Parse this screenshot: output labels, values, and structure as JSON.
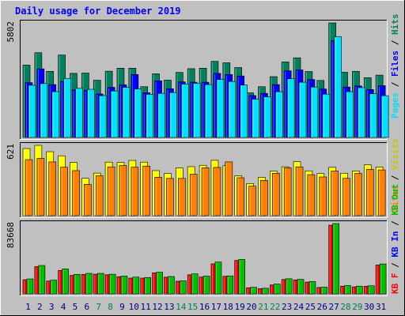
{
  "chart_data": {
    "type": "bar",
    "title": "Daily usage for December 2019",
    "x": [
      1,
      2,
      3,
      4,
      5,
      6,
      7,
      8,
      9,
      10,
      11,
      12,
      13,
      14,
      15,
      16,
      17,
      18,
      19,
      20,
      21,
      22,
      23,
      24,
      25,
      26,
      27,
      28,
      29,
      30,
      31
    ],
    "weekend_days": [
      7,
      8,
      14,
      15,
      21,
      22,
      28,
      29
    ],
    "panels": [
      {
        "id": "hits",
        "ymax": 5802,
        "ymax_label": "5802",
        "series": [
          {
            "name": "Hits",
            "color": "#00805c",
            "values": [
              3665,
              4293,
              3350,
              4176,
              3247,
              3262,
              2899,
              3357,
              3509,
              3509,
              2571,
              3225,
              2904,
              3296,
              3485,
              3509,
              3857,
              3782,
              3541,
              2262,
              2571,
              3080,
              3825,
              4034,
              3340,
              2890,
              5802,
              3302,
              3350,
              3029,
              3157
            ]
          },
          {
            "name": "Files",
            "color": "#0000ff",
            "values": [
              2776,
              3474,
              2678,
              2836,
              2413,
              2389,
              2204,
              2541,
              2665,
              3190,
              2266,
              2870,
              2467,
              2815,
              2798,
              2798,
              3247,
              3190,
              3115,
              2123,
              2234,
              2678,
              3376,
              3420,
              2934,
              2453,
              4915,
              2555,
              2610,
              2428,
              2624
            ]
          },
          {
            "name": "Pages",
            "color": "#00e0ff",
            "values": [
              2643,
              2730,
              2320,
              2992,
              2489,
              2440,
              2118,
              2356,
              2541,
              2455,
              2188,
              2234,
              2277,
              2709,
              2745,
              2678,
              2934,
              2836,
              2655,
              1941,
              2059,
              2320,
              2974,
              2798,
              2555,
              2193,
              5102,
              2320,
              2523,
              2217,
              2118
            ]
          }
        ]
      },
      {
        "id": "visits",
        "ymax": 621,
        "ymax_label": "621",
        "series": [
          {
            "name": "Visits",
            "color": "#ffff00",
            "values": [
              593,
              621,
              565,
              529,
              470,
              330,
              376,
              473,
              470,
              488,
              473,
              398,
              373,
              421,
              433,
              445,
              489,
              442,
              352,
              284,
              338,
              393,
              432,
              477,
              396,
              373,
              427,
              375,
              395,
              449,
              430
            ]
          },
          {
            "name": "Sites",
            "color": "#ff8000",
            "values": [
              495,
              506,
              475,
              428,
              398,
              277,
              352,
              431,
              443,
              428,
              438,
              339,
              329,
              329,
              366,
              423,
              426,
              475,
              335,
              260,
              312,
              375,
              423,
              431,
              362,
              342,
              394,
              330,
              373,
              409,
              404
            ]
          }
        ]
      },
      {
        "id": "kb",
        "ymax": 83668,
        "ymax_label": "83668",
        "series": [
          {
            "name": "KB F",
            "color": "#ff0000",
            "values": [
              16840,
              32460,
              15290,
              27940,
              22020,
              23180,
              23470,
              22800,
              20500,
              18800,
              18800,
              25060,
              19900,
              15070,
              22700,
              20120,
              35750,
              20940,
              39850,
              7300,
              6240,
              10680,
              17140,
              16640,
              14030,
              7650,
              81770,
              9200,
              8380,
              9100,
              34380
            ]
          },
          {
            "name": "KB In",
            "color": "#0000ff",
            "values": []
          },
          {
            "name": "KB Out",
            "color": "#00c000",
            "values": [
              17800,
              33800,
              16300,
              29700,
              23200,
              24400,
              24400,
              23400,
              21200,
              20000,
              19500,
              25800,
              20700,
              15500,
              23800,
              21200,
              37900,
              21400,
              41000,
              7800,
              6700,
              11700,
              18000,
              17300,
              14700,
              8000,
              83668,
              9900,
              9200,
              9700,
              35600
            ]
          }
        ]
      }
    ],
    "right_legend": {
      "top": [
        {
          "text": "Pages",
          "color": "#00e0ff"
        },
        {
          "text": " / ",
          "color": "#000000"
        },
        {
          "text": "Files",
          "color": "#0000ff"
        },
        {
          "text": " / ",
          "color": "#000000"
        },
        {
          "text": "Hits",
          "color": "#00805c"
        }
      ],
      "middle": [
        {
          "text": "Sites",
          "color": "#ff8000"
        },
        {
          "text": " / ",
          "color": "#000000"
        },
        {
          "text": "Visits",
          "color": "#c8c800"
        }
      ],
      "bottom": [
        {
          "text": "KB F",
          "color": "#ff0000"
        },
        {
          "text": " / ",
          "color": "#000000"
        },
        {
          "text": "KB In",
          "color": "#0000ff"
        },
        {
          "text": " / ",
          "color": "#000000"
        },
        {
          "text": "KB Out",
          "color": "#00c000"
        }
      ]
    }
  }
}
